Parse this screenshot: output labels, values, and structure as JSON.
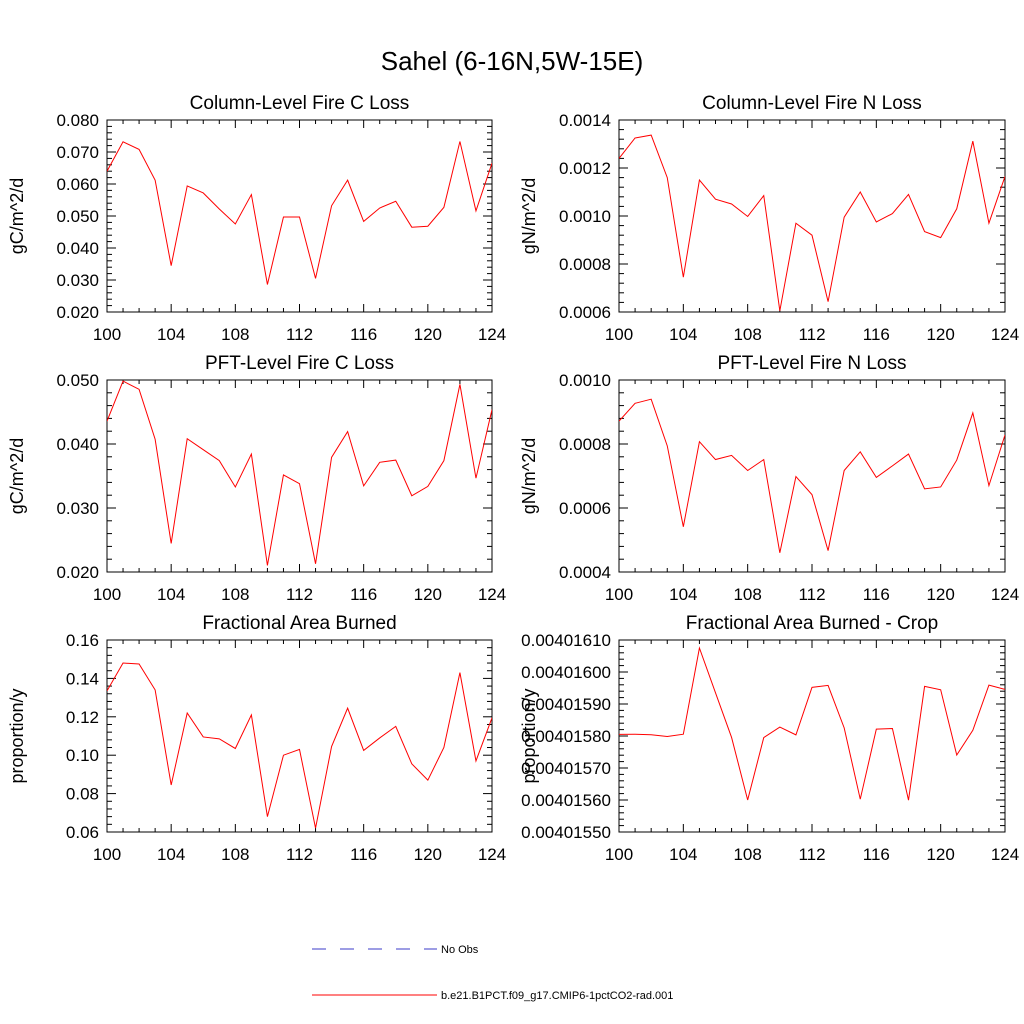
{
  "figure": {
    "title": "Sahel (6-16N,5W-15E)"
  },
  "legend": [
    {
      "label": "No Obs",
      "color": "#3b3bc8",
      "dash": "dashed"
    },
    {
      "label": "b.e21.B1PCT.f09_g17.CMIP6-1pctCO2-rad.001",
      "color": "#ff0000",
      "dash": "solid"
    }
  ],
  "chart_data": [
    {
      "type": "line",
      "title": "Column-Level Fire C Loss",
      "ylabel": "gC/m^2/d",
      "xlim": [
        100,
        124
      ],
      "ylim": [
        0.02,
        0.08
      ],
      "xticks": [
        "100",
        "104",
        "108",
        "112",
        "116",
        "120",
        "124"
      ],
      "yticks": [
        "0.020",
        "0.030",
        "0.040",
        "0.050",
        "0.060",
        "0.070",
        "0.080"
      ],
      "x": [
        100,
        101,
        102,
        103,
        104,
        105,
        106,
        107,
        108,
        109,
        110,
        111,
        112,
        113,
        114,
        115,
        116,
        117,
        118,
        119,
        120,
        121,
        122,
        123,
        124
      ],
      "series": [
        {
          "color": "#ff0000",
          "values": [
            0.064,
            0.0732,
            0.0708,
            0.0612,
            0.0345,
            0.0594,
            0.0572,
            0.0522,
            0.0475,
            0.0567,
            0.0286,
            0.0497,
            0.0497,
            0.0305,
            0.0532,
            0.0612,
            0.0483,
            0.0525,
            0.0546,
            0.0465,
            0.0468,
            0.0527,
            0.0733,
            0.0516,
            0.0665
          ]
        }
      ]
    },
    {
      "type": "line",
      "title": "Column-Level Fire N Loss",
      "ylabel": "gN/m^2/d",
      "xlim": [
        100,
        124
      ],
      "ylim": [
        0.0006,
        0.0014
      ],
      "xticks": [
        "100",
        "104",
        "108",
        "112",
        "116",
        "120",
        "124"
      ],
      "yticks": [
        "0.0006",
        "0.0008",
        "0.0010",
        "0.0012",
        "0.0014"
      ],
      "x": [
        100,
        101,
        102,
        103,
        104,
        105,
        106,
        107,
        108,
        109,
        110,
        111,
        112,
        113,
        114,
        115,
        116,
        117,
        118,
        119,
        120,
        121,
        122,
        123,
        124
      ],
      "series": [
        {
          "color": "#ff0000",
          "values": [
            0.00124,
            0.001325,
            0.001337,
            0.00116,
            0.000745,
            0.00115,
            0.00107,
            0.00105,
            0.000998,
            0.001085,
            0.000605,
            0.00097,
            0.00092,
            0.000643,
            0.000995,
            0.0011,
            0.000975,
            0.00101,
            0.00109,
            0.000935,
            0.00091,
            0.00103,
            0.001312,
            0.00097,
            0.001165
          ]
        }
      ]
    },
    {
      "type": "line",
      "title": "PFT-Level Fire C Loss",
      "ylabel": "gC/m^2/d",
      "xlim": [
        100,
        124
      ],
      "ylim": [
        0.02,
        0.055
      ],
      "xticks": [
        "100",
        "104",
        "108",
        "112",
        "116",
        "120",
        "124"
      ],
      "yticks": [
        "0.020",
        "0.030",
        "0.040",
        "0.050"
      ],
      "x": [
        100,
        101,
        102,
        103,
        104,
        105,
        106,
        107,
        108,
        109,
        110,
        111,
        112,
        113,
        114,
        115,
        116,
        117,
        118,
        119,
        120,
        121,
        122,
        123,
        124
      ],
      "series": [
        {
          "color": "#ff0000",
          "values": [
            0.0475,
            0.0548,
            0.0533,
            0.0442,
            0.0252,
            0.0443,
            0.0423,
            0.0403,
            0.0355,
            0.0415,
            0.0212,
            0.0377,
            0.0361,
            0.0215,
            0.0409,
            0.0456,
            0.0357,
            0.04,
            0.0404,
            0.0339,
            0.0356,
            0.0403,
            0.0542,
            0.0371,
            0.0496
          ]
        }
      ]
    },
    {
      "type": "line",
      "title": "PFT-Level Fire N Loss",
      "ylabel": "gN/m^2/d",
      "xlim": [
        100,
        124
      ],
      "ylim": [
        0.0004,
        0.0011
      ],
      "xticks": [
        "100",
        "104",
        "108",
        "112",
        "116",
        "120",
        "124"
      ],
      "yticks": [
        "0.0004",
        "0.0006",
        "0.0008",
        "0.0010"
      ],
      "x": [
        100,
        101,
        102,
        103,
        104,
        105,
        106,
        107,
        108,
        109,
        110,
        111,
        112,
        113,
        114,
        115,
        116,
        117,
        118,
        119,
        120,
        121,
        122,
        123,
        124
      ],
      "series": [
        {
          "color": "#ff0000",
          "values": [
            0.00095,
            0.001015,
            0.00103,
            0.00086,
            0.000565,
            0.000875,
            0.00081,
            0.000825,
            0.00077,
            0.00081,
            0.00047,
            0.000748,
            0.000682,
            0.000478,
            0.00077,
            0.000838,
            0.000745,
            0.000787,
            0.00083,
            0.000703,
            0.00071,
            0.000808,
            0.00098,
            0.000715,
            0.0009
          ]
        }
      ]
    },
    {
      "type": "line",
      "title": "Fractional Area Burned",
      "ylabel": "proportion/y",
      "xlim": [
        100,
        124
      ],
      "ylim": [
        0.06,
        0.16
      ],
      "xticks": [
        "100",
        "104",
        "108",
        "112",
        "116",
        "120",
        "124"
      ],
      "yticks": [
        "0.06",
        "0.08",
        "0.10",
        "0.12",
        "0.14",
        "0.16"
      ],
      "x": [
        100,
        101,
        102,
        103,
        104,
        105,
        106,
        107,
        108,
        109,
        110,
        111,
        112,
        113,
        114,
        115,
        116,
        117,
        118,
        119,
        120,
        121,
        122,
        123,
        124
      ],
      "series": [
        {
          "color": "#ff0000",
          "values": [
            0.1335,
            0.148,
            0.1475,
            0.134,
            0.0845,
            0.122,
            0.1095,
            0.1085,
            0.1035,
            0.121,
            0.068,
            0.1,
            0.103,
            0.062,
            0.1045,
            0.1245,
            0.1025,
            0.109,
            0.115,
            0.0955,
            0.087,
            0.104,
            0.143,
            0.097,
            0.1195
          ]
        }
      ]
    },
    {
      "type": "line",
      "title": "Fractional Area Burned - Crop",
      "ylabel": "proportion/y",
      "xlim": [
        100,
        124
      ],
      "ylim": [
        0.0040155,
        0.0040161
      ],
      "xticks": [
        "100",
        "104",
        "108",
        "112",
        "116",
        "120",
        "124"
      ],
      "yticks": [
        "0.00401550",
        "0.00401560",
        "0.00401570",
        "0.00401580",
        "0.00401590",
        "0.00401600",
        "0.00401610"
      ],
      "x": [
        100,
        101,
        102,
        103,
        104,
        105,
        106,
        107,
        108,
        109,
        110,
        111,
        112,
        113,
        114,
        115,
        116,
        117,
        118,
        119,
        120,
        121,
        122,
        123,
        124
      ],
      "series": [
        {
          "color": "#ff0000",
          "values": [
            0.004015805,
            0.0040158055,
            0.004015804,
            0.0040157985,
            0.0040158055,
            0.004016075,
            0.004015935,
            0.0040157955,
            0.0040156,
            0.004015795,
            0.004015828,
            0.0040158035,
            0.004015952,
            0.004015958,
            0.0040158255,
            0.0040156025,
            0.0040158215,
            0.0040158235,
            0.0040155995,
            0.004015955,
            0.0040159445,
            0.0040157405,
            0.004015818,
            0.004015959,
            0.0040159455
          ]
        }
      ]
    }
  ]
}
